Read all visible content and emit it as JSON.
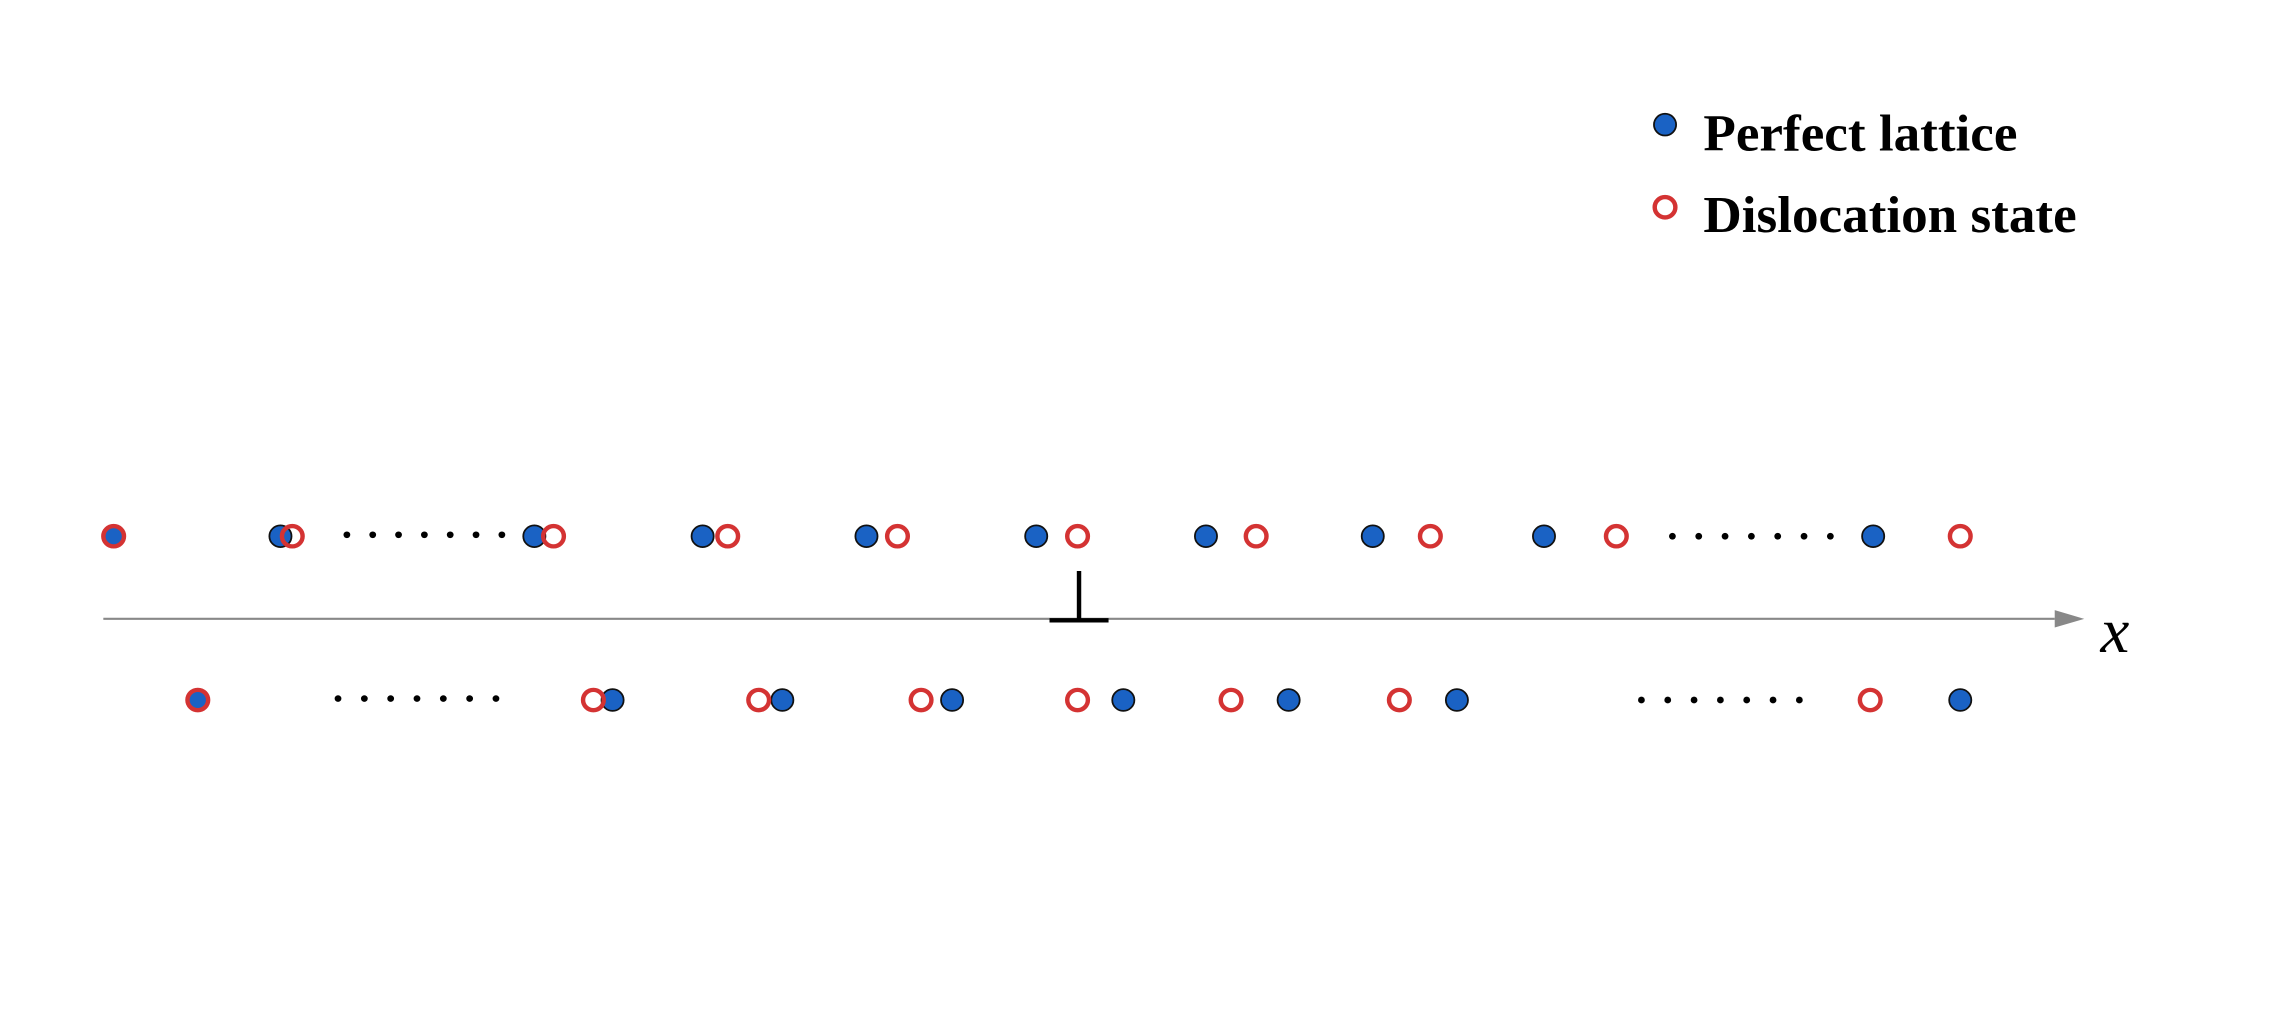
{
  "legend": {
    "items": [
      {
        "label": "Perfect lattice"
      },
      {
        "label": "Dislocation state"
      }
    ]
  },
  "axis": {
    "label": "x"
  }
}
